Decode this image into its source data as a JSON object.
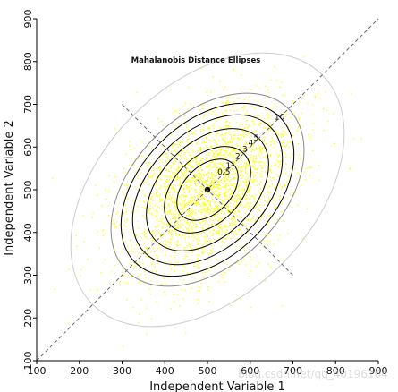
{
  "chart_data": {
    "type": "scatter",
    "title": "Mahalanobis Distance Ellipses",
    "xlabel": "Independent Variable 1",
    "ylabel": "Independent Variable 2",
    "xlim": [
      100,
      900
    ],
    "ylim": [
      100,
      900
    ],
    "xticks": [
      "100",
      "200",
      "300",
      "400",
      "500",
      "600",
      "700",
      "800",
      "900"
    ],
    "yticks": [
      "100",
      "200",
      "300",
      "400",
      "500",
      "600",
      "700",
      "800",
      "900"
    ],
    "mean": [
      500,
      500
    ],
    "major_axis_angle_deg": 45,
    "point_color": "#ffff00",
    "contour_levels": [
      {
        "label": "0.5",
        "semi_major": 85,
        "semi_minor": 55,
        "color": "#000000"
      },
      {
        "label": "1",
        "semi_major": 120,
        "semi_minor": 78,
        "color": "#000000"
      },
      {
        "label": "2",
        "semi_major": 170,
        "semi_minor": 110,
        "color": "#000000"
      },
      {
        "label": "3",
        "semi_major": 208,
        "semi_minor": 135,
        "color": "#000000"
      },
      {
        "label": "4",
        "semi_major": 240,
        "semi_minor": 156,
        "color": "#000000"
      },
      {
        "label": "5",
        "semi_major": 268,
        "semi_minor": 174,
        "color": "#888888"
      },
      {
        "label": "10",
        "semi_major": 380,
        "semi_minor": 246,
        "color": "#cccccc"
      }
    ],
    "major_axis_line": {
      "from": [
        100,
        100
      ],
      "to": [
        900,
        900
      ]
    },
    "minor_axis_line": {
      "from": [
        300,
        700
      ],
      "to": [
        700,
        300
      ]
    },
    "grid": false,
    "legend": "none"
  },
  "watermark": "blog.csdn.net/qq_40196164"
}
